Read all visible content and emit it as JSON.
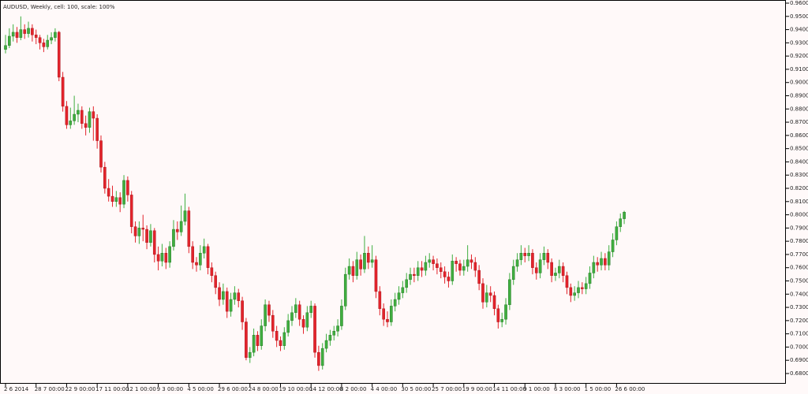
{
  "chart_data": {
    "type": "candlestick",
    "title": "AUDUSD, Weekly, cell: 100, scale: 100%",
    "up_color": "#3fae3f",
    "down_color": "#e3232b",
    "categories": [
      "2 6 2014",
      null,
      null,
      null,
      null,
      null,
      null,
      null,
      "28 7 00:00",
      null,
      null,
      null,
      null,
      null,
      null,
      null,
      "22 9 00:00",
      null,
      null,
      null,
      null,
      null,
      null,
      null,
      "17 11 00:00",
      null,
      null,
      null,
      null,
      null,
      null,
      null,
      "12 1 00:00",
      null,
      null,
      null,
      null,
      null,
      null,
      null,
      "9 3 00:00",
      null,
      null,
      null,
      null,
      null,
      null,
      null,
      "4 5 00:00",
      null,
      null,
      null,
      null,
      null,
      null,
      null,
      "29 6 00:00",
      null,
      null,
      null,
      null,
      null,
      null,
      null,
      "24 8 00:00",
      null,
      null,
      null,
      null,
      null,
      null,
      null,
      "19 10 00:00",
      null,
      null,
      null,
      null,
      null,
      null,
      null,
      "14 12 00:00",
      null,
      null,
      null,
      null,
      null,
      null,
      null,
      "8 2 00:00",
      null,
      null,
      null,
      null,
      null,
      null,
      null,
      "4 4 00:00",
      null,
      null,
      null,
      null,
      null,
      null,
      null,
      "30 5 00:00",
      null,
      null,
      null,
      null,
      null,
      null,
      null,
      "25 7 00:00",
      null,
      null,
      null,
      null,
      null,
      null,
      null,
      "19 9 00:00",
      null,
      null,
      null,
      null,
      null,
      null,
      null,
      "14 11 00:00",
      null,
      null,
      null,
      null,
      null,
      null,
      null,
      "9 1 00:00",
      null,
      null,
      null,
      null,
      null,
      null,
      null,
      "6 3 00:00",
      null,
      null,
      null,
      null,
      null,
      null,
      null,
      "1 5 00:00",
      null,
      null,
      null,
      null,
      null,
      null,
      null,
      "26 6 00:00",
      null,
      null
    ],
    "ohlc": [
      [
        0.925,
        0.936,
        0.922,
        0.928
      ],
      [
        0.928,
        0.941,
        0.926,
        0.935
      ],
      [
        0.935,
        0.944,
        0.931,
        0.938
      ],
      [
        0.938,
        0.942,
        0.93,
        0.934
      ],
      [
        0.934,
        0.95,
        0.932,
        0.94
      ],
      [
        0.94,
        0.944,
        0.933,
        0.937
      ],
      [
        0.937,
        0.946,
        0.934,
        0.941
      ],
      [
        0.941,
        0.944,
        0.931,
        0.936
      ],
      [
        0.936,
        0.94,
        0.929,
        0.934
      ],
      [
        0.934,
        0.936,
        0.925,
        0.93
      ],
      [
        0.93,
        0.933,
        0.923,
        0.927
      ],
      [
        0.927,
        0.936,
        0.925,
        0.932
      ],
      [
        0.932,
        0.938,
        0.929,
        0.934
      ],
      [
        0.934,
        0.941,
        0.931,
        0.938
      ],
      [
        0.938,
        0.939,
        0.901,
        0.904
      ],
      [
        0.904,
        0.908,
        0.878,
        0.882
      ],
      [
        0.882,
        0.886,
        0.865,
        0.868
      ],
      [
        0.868,
        0.881,
        0.865,
        0.871
      ],
      [
        0.871,
        0.89,
        0.868,
        0.876
      ],
      [
        0.876,
        0.884,
        0.87,
        0.879
      ],
      [
        0.879,
        0.882,
        0.865,
        0.869
      ],
      [
        0.869,
        0.875,
        0.86,
        0.866
      ],
      [
        0.866,
        0.881,
        0.862,
        0.878
      ],
      [
        0.878,
        0.882,
        0.856,
        0.873
      ],
      [
        0.873,
        0.876,
        0.85,
        0.856
      ],
      [
        0.856,
        0.86,
        0.832,
        0.836
      ],
      [
        0.836,
        0.84,
        0.816,
        0.82
      ],
      [
        0.82,
        0.827,
        0.81,
        0.814
      ],
      [
        0.814,
        0.822,
        0.806,
        0.81
      ],
      [
        0.81,
        0.818,
        0.806,
        0.813
      ],
      [
        0.813,
        0.817,
        0.802,
        0.808
      ],
      [
        0.808,
        0.83,
        0.805,
        0.826
      ],
      [
        0.826,
        0.829,
        0.81,
        0.815
      ],
      [
        0.815,
        0.818,
        0.786,
        0.791
      ],
      [
        0.791,
        0.795,
        0.779,
        0.784
      ],
      [
        0.784,
        0.795,
        0.778,
        0.79
      ],
      [
        0.79,
        0.8,
        0.78,
        0.789
      ],
      [
        0.789,
        0.792,
        0.774,
        0.779
      ],
      [
        0.779,
        0.793,
        0.776,
        0.788
      ],
      [
        0.788,
        0.79,
        0.764,
        0.77
      ],
      [
        0.77,
        0.776,
        0.758,
        0.765
      ],
      [
        0.765,
        0.778,
        0.761,
        0.771
      ],
      [
        0.771,
        0.775,
        0.759,
        0.764
      ],
      [
        0.764,
        0.78,
        0.76,
        0.776
      ],
      [
        0.776,
        0.796,
        0.773,
        0.789
      ],
      [
        0.789,
        0.795,
        0.781,
        0.787
      ],
      [
        0.787,
        0.807,
        0.784,
        0.795
      ],
      [
        0.795,
        0.816,
        0.792,
        0.803
      ],
      [
        0.803,
        0.806,
        0.771,
        0.776
      ],
      [
        0.776,
        0.78,
        0.759,
        0.764
      ],
      [
        0.764,
        0.768,
        0.757,
        0.762
      ],
      [
        0.762,
        0.777,
        0.758,
        0.771
      ],
      [
        0.771,
        0.782,
        0.767,
        0.776
      ],
      [
        0.776,
        0.778,
        0.755,
        0.76
      ],
      [
        0.76,
        0.764,
        0.749,
        0.754
      ],
      [
        0.754,
        0.757,
        0.74,
        0.745
      ],
      [
        0.745,
        0.749,
        0.731,
        0.736
      ],
      [
        0.736,
        0.748,
        0.732,
        0.742
      ],
      [
        0.742,
        0.745,
        0.722,
        0.727
      ],
      [
        0.727,
        0.741,
        0.723,
        0.736
      ],
      [
        0.736,
        0.746,
        0.732,
        0.741
      ],
      [
        0.741,
        0.744,
        0.73,
        0.735
      ],
      [
        0.735,
        0.738,
        0.713,
        0.719
      ],
      [
        0.719,
        0.722,
        0.69,
        0.692
      ],
      [
        0.692,
        0.7,
        0.688,
        0.696
      ],
      [
        0.696,
        0.714,
        0.693,
        0.709
      ],
      [
        0.709,
        0.712,
        0.697,
        0.701
      ],
      [
        0.701,
        0.721,
        0.698,
        0.716
      ],
      [
        0.716,
        0.736,
        0.712,
        0.732
      ],
      [
        0.732,
        0.735,
        0.719,
        0.724
      ],
      [
        0.724,
        0.728,
        0.707,
        0.712
      ],
      [
        0.712,
        0.716,
        0.7,
        0.705
      ],
      [
        0.705,
        0.708,
        0.697,
        0.701
      ],
      [
        0.701,
        0.715,
        0.698,
        0.711
      ],
      [
        0.711,
        0.725,
        0.708,
        0.72
      ],
      [
        0.72,
        0.731,
        0.716,
        0.726
      ],
      [
        0.726,
        0.737,
        0.722,
        0.732
      ],
      [
        0.732,
        0.735,
        0.716,
        0.721
      ],
      [
        0.721,
        0.724,
        0.71,
        0.715
      ],
      [
        0.715,
        0.731,
        0.712,
        0.726
      ],
      [
        0.726,
        0.735,
        0.722,
        0.731
      ],
      [
        0.731,
        0.733,
        0.692,
        0.696
      ],
      [
        0.696,
        0.701,
        0.682,
        0.686
      ],
      [
        0.686,
        0.703,
        0.683,
        0.699
      ],
      [
        0.699,
        0.71,
        0.696,
        0.705
      ],
      [
        0.705,
        0.713,
        0.701,
        0.709
      ],
      [
        0.709,
        0.716,
        0.705,
        0.712
      ],
      [
        0.712,
        0.721,
        0.708,
        0.716
      ],
      [
        0.716,
        0.736,
        0.713,
        0.731
      ],
      [
        0.731,
        0.76,
        0.728,
        0.755
      ],
      [
        0.755,
        0.767,
        0.751,
        0.761
      ],
      [
        0.761,
        0.765,
        0.749,
        0.754
      ],
      [
        0.754,
        0.772,
        0.751,
        0.766
      ],
      [
        0.766,
        0.77,
        0.754,
        0.759
      ],
      [
        0.759,
        0.784,
        0.756,
        0.771
      ],
      [
        0.771,
        0.776,
        0.759,
        0.764
      ],
      [
        0.764,
        0.777,
        0.76,
        0.766
      ],
      [
        0.766,
        0.769,
        0.737,
        0.742
      ],
      [
        0.742,
        0.746,
        0.724,
        0.729
      ],
      [
        0.729,
        0.733,
        0.716,
        0.721
      ],
      [
        0.721,
        0.727,
        0.715,
        0.719
      ],
      [
        0.719,
        0.736,
        0.716,
        0.731
      ],
      [
        0.731,
        0.741,
        0.727,
        0.736
      ],
      [
        0.736,
        0.746,
        0.732,
        0.741
      ],
      [
        0.741,
        0.75,
        0.737,
        0.745
      ],
      [
        0.745,
        0.756,
        0.741,
        0.751
      ],
      [
        0.751,
        0.76,
        0.747,
        0.755
      ],
      [
        0.755,
        0.76,
        0.749,
        0.754
      ],
      [
        0.754,
        0.765,
        0.75,
        0.76
      ],
      [
        0.76,
        0.765,
        0.753,
        0.758
      ],
      [
        0.758,
        0.769,
        0.754,
        0.764
      ],
      [
        0.764,
        0.771,
        0.76,
        0.766
      ],
      [
        0.766,
        0.769,
        0.758,
        0.763
      ],
      [
        0.763,
        0.767,
        0.755,
        0.76
      ],
      [
        0.76,
        0.764,
        0.752,
        0.757
      ],
      [
        0.757,
        0.761,
        0.748,
        0.753
      ],
      [
        0.753,
        0.757,
        0.745,
        0.75
      ],
      [
        0.75,
        0.77,
        0.747,
        0.765
      ],
      [
        0.765,
        0.768,
        0.757,
        0.763
      ],
      [
        0.763,
        0.766,
        0.754,
        0.758
      ],
      [
        0.758,
        0.766,
        0.754,
        0.761
      ],
      [
        0.761,
        0.777,
        0.757,
        0.766
      ],
      [
        0.766,
        0.77,
        0.759,
        0.764
      ],
      [
        0.764,
        0.768,
        0.753,
        0.758
      ],
      [
        0.758,
        0.762,
        0.743,
        0.748
      ],
      [
        0.748,
        0.752,
        0.729,
        0.734
      ],
      [
        0.734,
        0.747,
        0.73,
        0.741
      ],
      [
        0.741,
        0.746,
        0.734,
        0.739
      ],
      [
        0.739,
        0.742,
        0.724,
        0.729
      ],
      [
        0.729,
        0.732,
        0.714,
        0.719
      ],
      [
        0.719,
        0.726,
        0.715,
        0.721
      ],
      [
        0.721,
        0.737,
        0.717,
        0.732
      ],
      [
        0.732,
        0.756,
        0.728,
        0.751
      ],
      [
        0.751,
        0.766,
        0.747,
        0.761
      ],
      [
        0.761,
        0.771,
        0.757,
        0.766
      ],
      [
        0.766,
        0.777,
        0.762,
        0.771
      ],
      [
        0.771,
        0.775,
        0.764,
        0.769
      ],
      [
        0.769,
        0.777,
        0.765,
        0.771
      ],
      [
        0.771,
        0.774,
        0.755,
        0.76
      ],
      [
        0.76,
        0.764,
        0.751,
        0.756
      ],
      [
        0.756,
        0.771,
        0.752,
        0.766
      ],
      [
        0.766,
        0.776,
        0.762,
        0.771
      ],
      [
        0.771,
        0.774,
        0.759,
        0.764
      ],
      [
        0.764,
        0.767,
        0.749,
        0.754
      ],
      [
        0.754,
        0.76,
        0.75,
        0.756
      ],
      [
        0.756,
        0.766,
        0.752,
        0.761
      ],
      [
        0.761,
        0.764,
        0.749,
        0.754
      ],
      [
        0.754,
        0.757,
        0.74,
        0.745
      ],
      [
        0.745,
        0.748,
        0.734,
        0.739
      ],
      [
        0.739,
        0.746,
        0.735,
        0.741
      ],
      [
        0.741,
        0.75,
        0.737,
        0.745
      ],
      [
        0.745,
        0.749,
        0.74,
        0.744
      ],
      [
        0.744,
        0.753,
        0.74,
        0.748
      ],
      [
        0.748,
        0.761,
        0.744,
        0.756
      ],
      [
        0.756,
        0.769,
        0.752,
        0.764
      ],
      [
        0.764,
        0.768,
        0.757,
        0.762
      ],
      [
        0.762,
        0.772,
        0.758,
        0.767
      ],
      [
        0.767,
        0.771,
        0.758,
        0.762
      ],
      [
        0.762,
        0.777,
        0.758,
        0.772
      ],
      [
        0.772,
        0.786,
        0.768,
        0.781
      ],
      [
        0.781,
        0.795,
        0.777,
        0.791
      ],
      [
        0.791,
        0.801,
        0.787,
        0.797
      ],
      [
        0.797,
        0.803,
        0.793,
        0.802
      ]
    ],
    "ylim": [
      0.68,
      0.96
    ],
    "yticks": [
      {
        "value": 0.68,
        "label": "0.6800"
      },
      {
        "value": 0.69,
        "label": "0.6900"
      },
      {
        "value": 0.7,
        "label": "0.7000"
      },
      {
        "value": 0.71,
        "label": "0.7100"
      },
      {
        "value": 0.72,
        "label": "0.7200"
      },
      {
        "value": 0.73,
        "label": "0.7300"
      },
      {
        "value": 0.74,
        "label": "0.7400"
      },
      {
        "value": 0.75,
        "label": "0.7500"
      },
      {
        "value": 0.76,
        "label": "0.7600"
      },
      {
        "value": 0.77,
        "label": "0.7700"
      },
      {
        "value": 0.78,
        "label": "0.7800"
      },
      {
        "value": 0.79,
        "label": "0.7900"
      },
      {
        "value": 0.8,
        "label": "0.8000"
      },
      {
        "value": 0.81,
        "label": "0.8100"
      },
      {
        "value": 0.82,
        "label": "0.8200"
      },
      {
        "value": 0.83,
        "label": "0.8300"
      },
      {
        "value": 0.84,
        "label": "0.8400"
      },
      {
        "value": 0.85,
        "label": "0.8500"
      },
      {
        "value": 0.86,
        "label": "0.8600"
      },
      {
        "value": 0.87,
        "label": "0.8700"
      },
      {
        "value": 0.88,
        "label": "0.8800"
      },
      {
        "value": 0.89,
        "label": "0.8900"
      },
      {
        "value": 0.9,
        "label": "0.9000"
      },
      {
        "value": 0.91,
        "label": "0.9100"
      },
      {
        "value": 0.92,
        "label": "0.9200"
      },
      {
        "value": 0.93,
        "label": "0.9300"
      },
      {
        "value": 0.94,
        "label": "0.9400"
      },
      {
        "value": 0.95,
        "label": "0.9500"
      },
      {
        "value": 0.96,
        "label": "0.9600"
      }
    ]
  }
}
